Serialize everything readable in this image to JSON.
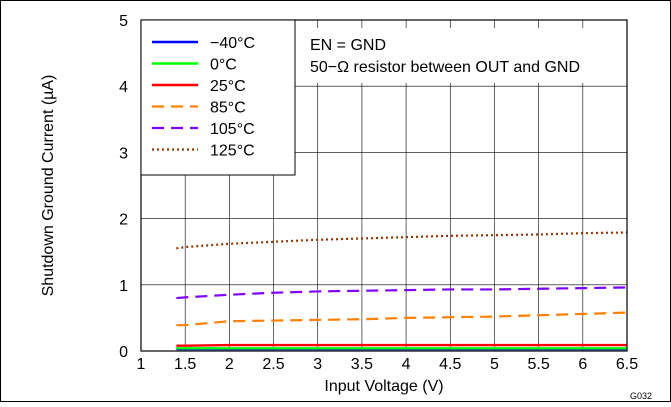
{
  "chart_data": {
    "type": "line",
    "xlabel": "Input Voltage (V)",
    "ylabel": "Shutdown Ground Current (µA)",
    "xlim": [
      1,
      6.5
    ],
    "ylim": [
      0,
      5
    ],
    "xticks": [
      "1",
      "1.5",
      "2",
      "2.5",
      "3",
      "3.5",
      "4",
      "4.5",
      "5",
      "5.5",
      "6",
      "6.5"
    ],
    "yticks": [
      "0",
      "1",
      "2",
      "3",
      "4",
      "5"
    ],
    "grid": true,
    "legend_position": "top-left",
    "annotations": [
      "EN = GND",
      "50−Ω resistor between OUT and GND"
    ],
    "figure_id": "G032",
    "series": [
      {
        "name": "−40°C",
        "color": "#0000ff",
        "style": "solid",
        "x": [
          1.4,
          1.5,
          2,
          2.5,
          3,
          3.5,
          4,
          4.5,
          5,
          5.5,
          6,
          6.5
        ],
        "y": [
          0.03,
          0.03,
          0.03,
          0.03,
          0.03,
          0.03,
          0.03,
          0.03,
          0.03,
          0.03,
          0.03,
          0.03
        ]
      },
      {
        "name": "0°C",
        "color": "#00ff00",
        "style": "solid",
        "x": [
          1.4,
          1.5,
          2,
          2.5,
          3,
          3.5,
          4,
          4.5,
          5,
          5.5,
          6,
          6.5
        ],
        "y": [
          0.04,
          0.04,
          0.04,
          0.04,
          0.04,
          0.04,
          0.04,
          0.04,
          0.04,
          0.04,
          0.04,
          0.04
        ]
      },
      {
        "name": "25°C",
        "color": "#ff0000",
        "style": "solid",
        "x": [
          1.4,
          1.5,
          2,
          2.5,
          3,
          3.5,
          4,
          4.5,
          5,
          5.5,
          6,
          6.5
        ],
        "y": [
          0.08,
          0.08,
          0.09,
          0.09,
          0.09,
          0.09,
          0.09,
          0.09,
          0.09,
          0.09,
          0.09,
          0.09
        ]
      },
      {
        "name": "85°C",
        "color": "#ff8000",
        "style": "dashed",
        "x": [
          1.4,
          1.5,
          2,
          2.5,
          3,
          3.5,
          4,
          4.5,
          5,
          5.5,
          6,
          6.5
        ],
        "y": [
          0.39,
          0.39,
          0.45,
          0.46,
          0.47,
          0.48,
          0.5,
          0.51,
          0.52,
          0.54,
          0.56,
          0.58
        ]
      },
      {
        "name": "105°C",
        "color": "#8000ff",
        "style": "dashed",
        "x": [
          1.4,
          1.5,
          2,
          2.5,
          3,
          3.5,
          4,
          4.5,
          5,
          5.5,
          6,
          6.5
        ],
        "y": [
          0.8,
          0.81,
          0.85,
          0.88,
          0.9,
          0.91,
          0.92,
          0.93,
          0.93,
          0.94,
          0.95,
          0.96
        ]
      },
      {
        "name": "125°C",
        "color": "#993300",
        "style": "dotted",
        "x": [
          1.4,
          1.5,
          2,
          2.5,
          3,
          3.5,
          4,
          4.5,
          5,
          5.5,
          6,
          6.5
        ],
        "y": [
          1.55,
          1.57,
          1.62,
          1.65,
          1.68,
          1.7,
          1.72,
          1.74,
          1.75,
          1.76,
          1.78,
          1.79
        ]
      }
    ]
  }
}
